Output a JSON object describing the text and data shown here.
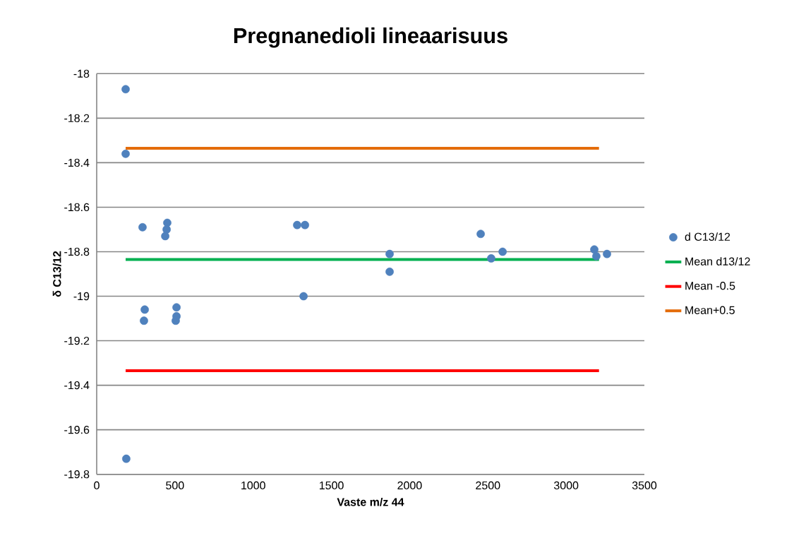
{
  "chart_data": {
    "type": "scatter",
    "title": "Pregnanedioli lineaarisuus",
    "xlabel": "Vaste m/z 44",
    "ylabel": "δ C13/12",
    "xlim": [
      0,
      3500
    ],
    "xticks": [
      0,
      500,
      1000,
      1500,
      2000,
      2500,
      3000,
      3500
    ],
    "ylim": [
      -19.8,
      -18
    ],
    "yticks": [
      -19.8,
      -19.6,
      -19.4,
      -19.2,
      -19,
      -18.8,
      -18.6,
      -18.4,
      -18.2,
      -18
    ],
    "grid": "y",
    "legend": "right",
    "series": [
      {
        "name": "d C13/12",
        "marker": "circle",
        "color": "#4f81bd",
        "x": [
          185,
          185,
          293,
          451,
          447,
          438,
          1872,
          1872,
          1281,
          1331,
          1322,
          2454,
          2521,
          2594,
          3180,
          3193,
          3261,
          307,
          302,
          510,
          510,
          505,
          189
        ],
        "values": [
          -18.07,
          -18.36,
          -18.69,
          -18.67,
          -18.7,
          -18.73,
          -18.89,
          -18.81,
          -18.68,
          -18.68,
          -19.0,
          -18.72,
          -18.83,
          -18.8,
          -18.79,
          -18.82,
          -18.81,
          -19.06,
          -19.11,
          -19.05,
          -19.09,
          -19.11,
          -19.73
        ]
      },
      {
        "name": "Mean d13/12",
        "type": "line",
        "marker": "none",
        "color": "#00b050",
        "x": [
          185,
          3210
        ],
        "values": [
          -18.835,
          -18.835
        ]
      },
      {
        "name": "Mean -0.5",
        "type": "line",
        "marker": "none",
        "color": "#ff0000",
        "x": [
          185,
          3210
        ],
        "values": [
          -19.335,
          -19.335
        ]
      },
      {
        "name": "Mean+0.5",
        "type": "line",
        "marker": "none",
        "color": "#e46c0a",
        "x": [
          185,
          3210
        ],
        "values": [
          -18.335,
          -18.335
        ]
      }
    ]
  }
}
